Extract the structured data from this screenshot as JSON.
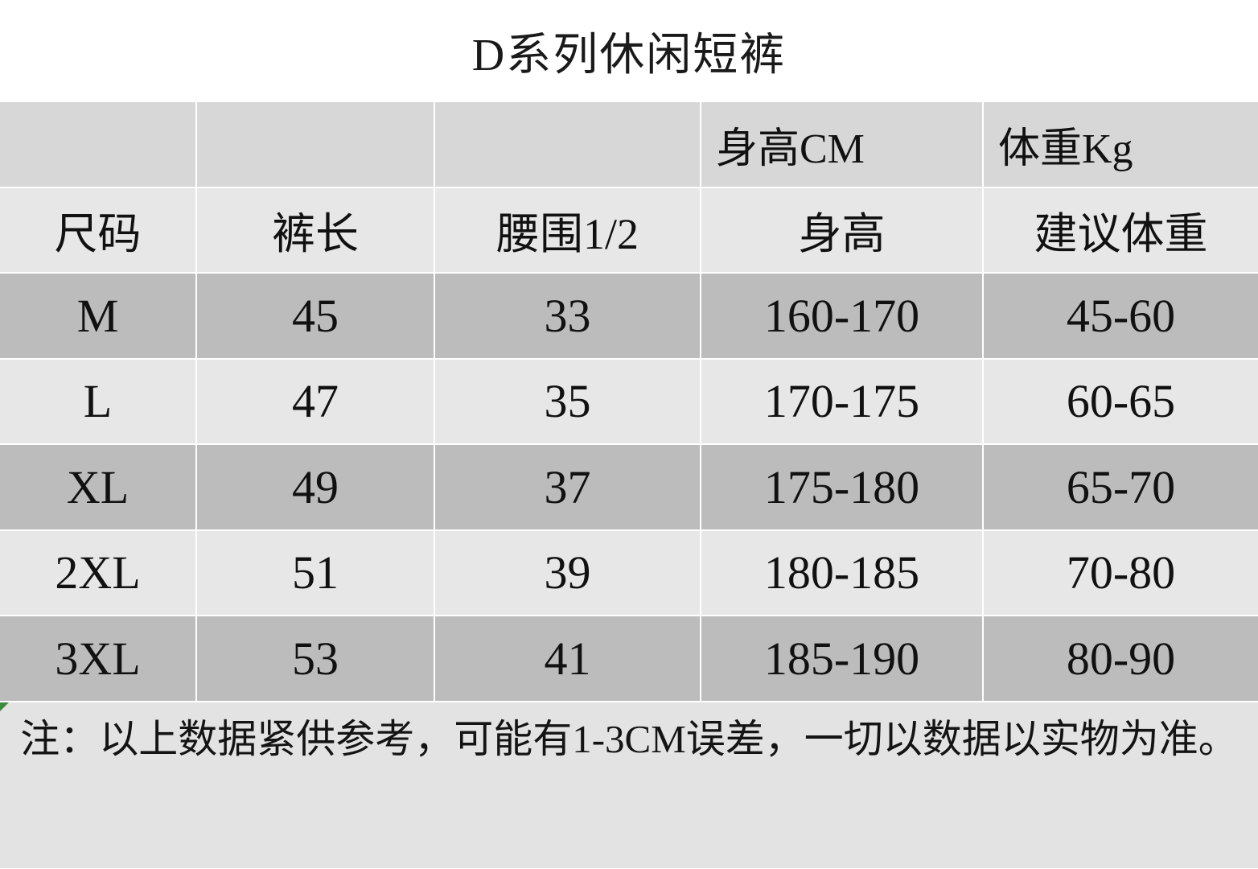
{
  "title": "D系列休闲短裤",
  "table": {
    "group_headers": {
      "height_group": "身高CM",
      "weight_group": "体重Kg"
    },
    "columns": [
      "尺码",
      "裤长",
      "腰围1/2",
      "身高",
      "建议体重"
    ],
    "rows": [
      {
        "size": "M",
        "pants_length": "45",
        "half_waist": "33",
        "height_range": "160-170",
        "weight_range": "45-60"
      },
      {
        "size": "L",
        "pants_length": "47",
        "half_waist": "35",
        "height_range": "170-175",
        "weight_range": "60-65"
      },
      {
        "size": "XL",
        "pants_length": "49",
        "half_waist": "37",
        "height_range": "175-180",
        "weight_range": "65-70"
      },
      {
        "size": "2XL",
        "pants_length": "51",
        "half_waist": "39",
        "height_range": "180-185",
        "weight_range": "70-80"
      },
      {
        "size": "3XL",
        "pants_length": "53",
        "half_waist": "41",
        "height_range": "185-190",
        "weight_range": "80-90"
      }
    ]
  },
  "note": "注：以上数据紧供参考，可能有1-3CM误差，一切以数据以实物为准。",
  "colors": {
    "group_header_bg": "#d7d7d7",
    "col_header_bg": "#e7e7e7",
    "row_dark_bg": "#bcbcbc",
    "row_light_bg": "#e7e7e7",
    "note_bg": "#e3e3e3",
    "corner_marker_green": "#3d8b3d"
  }
}
